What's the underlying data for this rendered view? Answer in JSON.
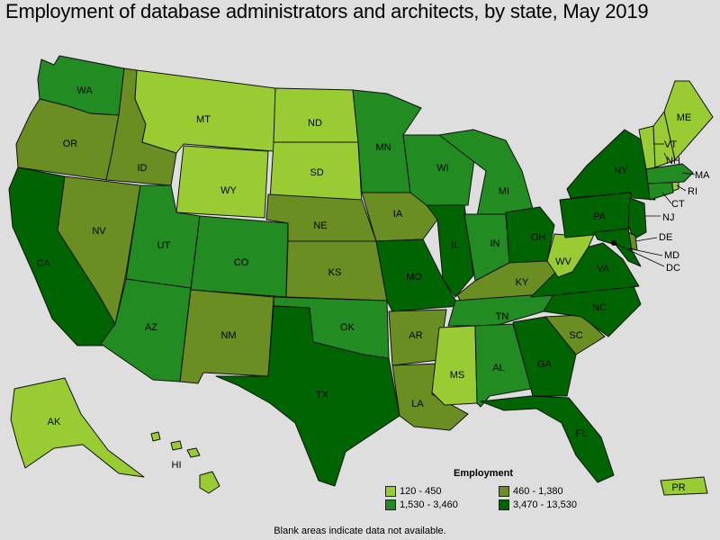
{
  "title": "Employment of database administrators and architects, by state, May 2019",
  "legend": {
    "title": "Employment",
    "items": [
      {
        "label": "120 - 450",
        "color": "#99cc33"
      },
      {
        "label": "460 - 1,380",
        "color": "#6b8e23"
      },
      {
        "label": "1,530 - 3,460",
        "color": "#228b22"
      },
      {
        "label": "3,470 - 13,530",
        "color": "#006400"
      }
    ]
  },
  "footnote": "Blank areas indicate data not available.",
  "states": [
    {
      "abbr": "WA",
      "tier": 3
    },
    {
      "abbr": "OR",
      "tier": 2
    },
    {
      "abbr": "CA",
      "tier": 4
    },
    {
      "abbr": "ID",
      "tier": 2
    },
    {
      "abbr": "NV",
      "tier": 2
    },
    {
      "abbr": "MT",
      "tier": 1
    },
    {
      "abbr": "WY",
      "tier": 1
    },
    {
      "abbr": "UT",
      "tier": 3
    },
    {
      "abbr": "AZ",
      "tier": 3
    },
    {
      "abbr": "CO",
      "tier": 3
    },
    {
      "abbr": "NM",
      "tier": 2
    },
    {
      "abbr": "ND",
      "tier": 1
    },
    {
      "abbr": "SD",
      "tier": 1
    },
    {
      "abbr": "NE",
      "tier": 2
    },
    {
      "abbr": "KS",
      "tier": 2
    },
    {
      "abbr": "OK",
      "tier": 3
    },
    {
      "abbr": "TX",
      "tier": 4
    },
    {
      "abbr": "MN",
      "tier": 3
    },
    {
      "abbr": "IA",
      "tier": 2
    },
    {
      "abbr": "MO",
      "tier": 4
    },
    {
      "abbr": "AR",
      "tier": 2
    },
    {
      "abbr": "LA",
      "tier": 2
    },
    {
      "abbr": "WI",
      "tier": 3
    },
    {
      "abbr": "IL",
      "tier": 4
    },
    {
      "abbr": "MI",
      "tier": 3
    },
    {
      "abbr": "IN",
      "tier": 3
    },
    {
      "abbr": "OH",
      "tier": 4
    },
    {
      "abbr": "KY",
      "tier": 2
    },
    {
      "abbr": "TN",
      "tier": 3
    },
    {
      "abbr": "MS",
      "tier": 1
    },
    {
      "abbr": "AL",
      "tier": 3
    },
    {
      "abbr": "GA",
      "tier": 4
    },
    {
      "abbr": "FL",
      "tier": 4
    },
    {
      "abbr": "SC",
      "tier": 2
    },
    {
      "abbr": "NC",
      "tier": 4
    },
    {
      "abbr": "VA",
      "tier": 4
    },
    {
      "abbr": "WV",
      "tier": 1
    },
    {
      "abbr": "PA",
      "tier": 4
    },
    {
      "abbr": "NY",
      "tier": 4
    },
    {
      "abbr": "NJ",
      "tier": 4
    },
    {
      "abbr": "DE",
      "tier": 2
    },
    {
      "abbr": "MD",
      "tier": 4
    },
    {
      "abbr": "DC",
      "tier": 4
    },
    {
      "abbr": "CT",
      "tier": 3
    },
    {
      "abbr": "RI",
      "tier": 1
    },
    {
      "abbr": "MA",
      "tier": 3
    },
    {
      "abbr": "VT",
      "tier": 1
    },
    {
      "abbr": "NH",
      "tier": 1
    },
    {
      "abbr": "ME",
      "tier": 1
    },
    {
      "abbr": "AK",
      "tier": 1
    },
    {
      "abbr": "HI",
      "tier": 1
    },
    {
      "abbr": "PR",
      "tier": 1
    }
  ]
}
